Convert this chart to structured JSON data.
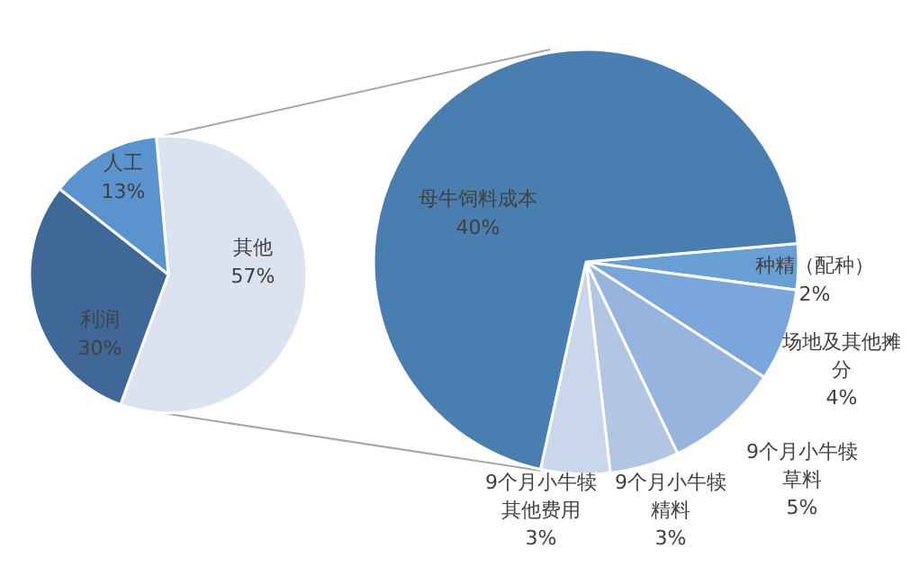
{
  "chart_data": [
    {
      "type": "pie",
      "categories": [
        "其他",
        "利润",
        "人工"
      ],
      "values": [
        57,
        30,
        13
      ],
      "colors": [
        "#dce3f0",
        "#3f6797",
        "#5b93cf"
      ],
      "value_labels": [
        "57%",
        "30%",
        "13%"
      ]
    },
    {
      "type": "pie",
      "categories": [
        "种精（配种）",
        "场地及其他摊分",
        "9个月小牛犊草料",
        "9个月小牛犊精料",
        "9个月小牛犊其他费用",
        "母牛饲料成本"
      ],
      "values": [
        2,
        4,
        5,
        3,
        3,
        40
      ],
      "colors": [
        "#6a9fd6",
        "#7ba6dc",
        "#96b4de",
        "#b2c5e3",
        "#c9d6ec",
        "#4a7eb0"
      ],
      "value_labels": [
        "2%",
        "4%",
        "5%",
        "3%",
        "3%",
        "40%"
      ]
    }
  ]
}
